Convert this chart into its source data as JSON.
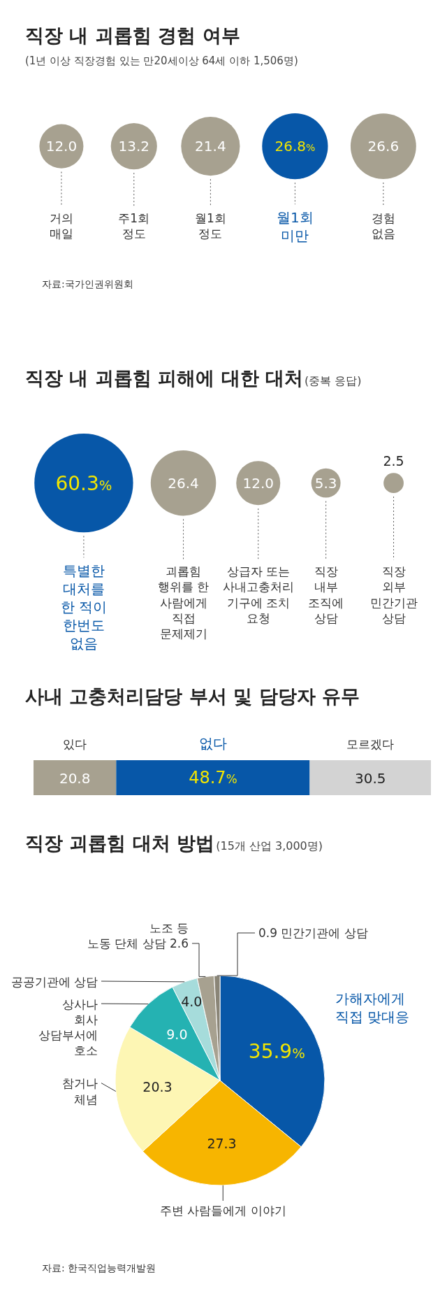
{
  "chart_data": [
    {
      "type": "other",
      "title": "직장 내 괴롭힘 경험 여부",
      "subtitle": "(1년 이상 직장경험 있는 만20세이상 64세 이하 1,506명)",
      "categories": [
        "거의\n매일",
        "주1회\n정도",
        "월1회\n정도",
        "월1회\n미만",
        "경험\n없음"
      ],
      "values": [
        12.0,
        13.2,
        21.4,
        26.8,
        26.6
      ],
      "colors": [
        "#a7a190",
        "#a7a190",
        "#a7a190",
        "#0757a8",
        "#a7a190"
      ],
      "value_labels": [
        "12.0",
        "13.2",
        "21.4",
        "26.8%",
        "26.6"
      ],
      "annotations": [
        "자료:국가인권위원회"
      ]
    },
    {
      "type": "other",
      "title": "직장 내 괴롭힘 피해에 대한 대처",
      "subtitle": "(중복 응답)",
      "categories": [
        "특별한\n대처를\n한 적이\n한번도\n없음",
        "괴롭힘\n행위를 한\n사람에게\n직접\n문제제기",
        "상급자 또는\n사내고충처리\n기구에 조치\n요청",
        "직장\n내부\n조직에\n상담",
        "직장\n외부\n민간기관\n상담"
      ],
      "values": [
        60.3,
        26.4,
        12.0,
        5.3,
        2.5
      ],
      "colors": [
        "#0757a8",
        "#a7a190",
        "#a7a190",
        "#a7a190",
        "#a7a190"
      ],
      "value_labels": [
        "60.3%",
        "26.4",
        "12.0",
        "5.3",
        "2.5"
      ]
    },
    {
      "type": "bar",
      "orientation": "horizontal",
      "stacked": true,
      "title": "사내 고충처리담당 부서 및 담당자 유무",
      "categories": [
        null
      ],
      "series": [
        {
          "name": "있다",
          "color": "#a7a190",
          "values": [
            20.8
          ],
          "value_labels": [
            "20.8"
          ]
        },
        {
          "name": "없다",
          "color": "#0757a8",
          "values": [
            48.7
          ],
          "value_labels": [
            "48.7%"
          ]
        },
        {
          "name": "모르겠다",
          "color": "#d3d3d3",
          "values": [
            30.5
          ],
          "value_labels": [
            "30.5"
          ]
        }
      ]
    },
    {
      "type": "pie",
      "title": "직장 괴롭힘 대처 방법",
      "subtitle": "(15개 산업 3,000명)",
      "categories": [
        "가해자에게\n직접 맞대응",
        "주변 사람들에게 이야기",
        "참거나\n체념",
        "상사나\n회사\n상담부서에\n호소",
        "공공기관에 상담",
        "노조 등\n노동 단체 상담 2.6",
        "0.9 민간기관에 상담"
      ],
      "values": [
        35.9,
        27.3,
        20.3,
        9.0,
        4.0,
        2.6,
        0.9
      ],
      "colors": [
        "#0757a8",
        "#f7b500",
        "#fdf6b4",
        "#25b2b2",
        "#a6dcdb",
        "#a7a190",
        "#8a8577"
      ],
      "value_labels": [
        "35.9%",
        "27.3",
        "20.3",
        "9.0",
        "4.0",
        null,
        null
      ],
      "annotations": [
        "자료: 한국직업능력개발원"
      ]
    }
  ]
}
